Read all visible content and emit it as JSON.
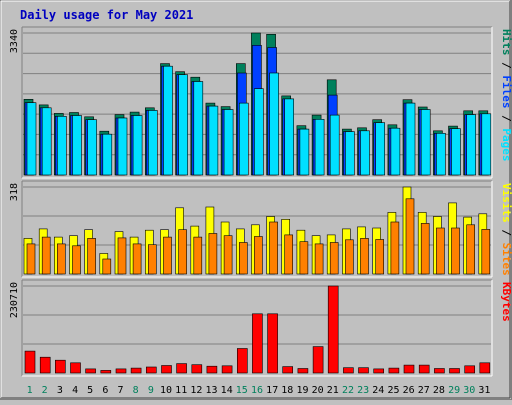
{
  "chart_data": [
    {
      "type": "bar",
      "title": "Daily usage for May 2021",
      "categories": [
        "1",
        "2",
        "3",
        "4",
        "5",
        "6",
        "7",
        "8",
        "9",
        "10",
        "11",
        "12",
        "13",
        "14",
        "15",
        "16",
        "17",
        "18",
        "19",
        "20",
        "21",
        "22",
        "23",
        "24",
        "25",
        "26",
        "27",
        "28",
        "29",
        "30",
        "31"
      ],
      "weekend_days": [
        "1",
        "2",
        "8",
        "9",
        "15",
        "16",
        "22",
        "23",
        "29",
        "30"
      ],
      "ylim": [
        0,
        3340
      ],
      "max_label": "3340",
      "right_label_parts": [
        "Pages",
        "Files",
        "Hits"
      ],
      "series": [
        {
          "name": "Hits",
          "values": [
            1780,
            1650,
            1450,
            1470,
            1370,
            1030,
            1420,
            1480,
            1580,
            2620,
            2430,
            2300,
            1690,
            1610,
            2620,
            3340,
            3310,
            1860,
            1160,
            1410,
            2240,
            1080,
            1110,
            1300,
            1180,
            1770,
            1600,
            1040,
            1150,
            1510,
            1510
          ]
        },
        {
          "name": "Files",
          "values": [
            1700,
            1580,
            1380,
            1400,
            1300,
            960,
            1340,
            1400,
            1520,
            2560,
            2360,
            2200,
            1620,
            1540,
            2400,
            3050,
            3000,
            1790,
            1080,
            1310,
            1880,
            1020,
            1040,
            1230,
            1100,
            1690,
            1540,
            980,
            1090,
            1420,
            1440
          ]
        },
        {
          "name": "Pages",
          "values": [
            1700,
            1580,
            1380,
            1400,
            1300,
            960,
            1340,
            1400,
            1520,
            2560,
            2360,
            2200,
            1620,
            1540,
            1690,
            2030,
            2400,
            1790,
            1080,
            1310,
            1410,
            1020,
            1040,
            1230,
            1100,
            1690,
            1540,
            980,
            1090,
            1420,
            1440
          ]
        }
      ],
      "colors": {
        "Hits": "#00805c",
        "Files": "#0040ff",
        "Pages": "#00e0ff"
      }
    },
    {
      "type": "bar",
      "ylim": [
        0,
        318
      ],
      "max_label": "318",
      "right_label_parts": [
        "Sites",
        "Visits"
      ],
      "series": [
        {
          "name": "Visits",
          "values": [
            130,
            165,
            135,
            140,
            162,
            75,
            155,
            135,
            160,
            162,
            242,
            175,
            245,
            190,
            165,
            180,
            210,
            200,
            160,
            140,
            143,
            165,
            172,
            168,
            225,
            318,
            225,
            210,
            260,
            208,
            220
          ]
        },
        {
          "name": "Sites",
          "values": [
            110,
            135,
            110,
            103,
            130,
            55,
            132,
            110,
            107,
            135,
            162,
            135,
            148,
            140,
            115,
            137,
            190,
            143,
            118,
            110,
            115,
            125,
            130,
            126,
            190,
            275,
            185,
            168,
            168,
            180,
            163
          ]
        }
      ],
      "colors": {
        "Visits": "#ffff00",
        "Sites": "#ff8000"
      }
    },
    {
      "type": "bar",
      "ylim": [
        0,
        230710
      ],
      "max_label": "230710",
      "right_label_parts": [
        "KBytes"
      ],
      "series": [
        {
          "name": "KBytes",
          "values": [
            58000,
            42000,
            34000,
            27000,
            11000,
            7000,
            11000,
            13000,
            16000,
            20000,
            25000,
            22000,
            18000,
            19000,
            65000,
            157000,
            157000,
            17000,
            12000,
            70000,
            230710,
            14000,
            14000,
            11000,
            13000,
            21000,
            21000,
            12000,
            12000,
            19000,
            27000
          ]
        }
      ],
      "colors": {
        "KBytes": "#ff0000"
      }
    }
  ]
}
